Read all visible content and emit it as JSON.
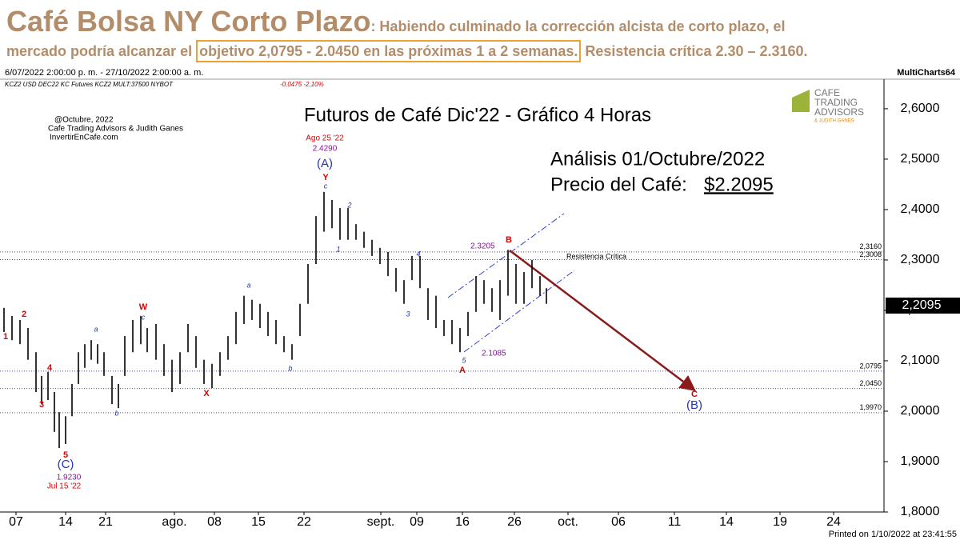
{
  "header": {
    "title": "Café Bolsa NY Corto Plazo",
    "subtitle_1": ": Habiendo culminado la corrección alcista de corto plazo, el",
    "subtitle_2a": "mercado podría alcanzar el ",
    "subtitle_2b": "objetivo 2,0795 - 2.0450 en las próximas 1 a 2 semanas.",
    "subtitle_2c": " Resistencia crítica 2.30 – 2.3160."
  },
  "info": {
    "range": "6/07/2022 2:00:00 p. m. - 27/10/2022 2:00:00 a. m.",
    "app": "MultiCharts64",
    "symbol": "KCZ2  USD DEC22 KC Futures KCZ2 MULT:37500  NYBOT",
    "change": "-0,0475  -2,10%",
    "printed": "Printed on 1/10/2022 at 23:41:55"
  },
  "chart_data": {
    "type": "range-bar",
    "title": "Futuros de Café Dic'22 - Gráfico 4 Horas",
    "color": "#000000",
    "x": [
      0.5,
      1.5,
      2.5,
      3.5,
      4.5,
      5.2,
      6,
      6.8,
      7.4,
      8.2,
      9,
      9.8,
      10.6,
      11.4,
      12.2,
      13,
      14,
      14.8,
      15.6,
      16.6,
      17.6,
      18.4,
      19.5,
      20.5,
      21.5,
      22.5,
      23.5,
      24.5,
      25.5,
      26.5,
      27.5,
      28.5,
      29.5,
      30.5,
      31.5,
      32.5,
      33.5,
      34.5,
      35.5,
      36.5,
      37.5,
      38.5,
      39.5,
      40.5,
      41.5,
      42.5,
      43.5,
      44.5,
      45.5,
      46.5,
      47.5,
      48.5,
      49.5,
      50.5,
      51.5,
      52.5,
      53.5,
      54.5,
      55.5,
      56.5,
      57.5,
      58.5,
      59.5,
      60.5,
      61.5,
      62.5,
      63.5,
      64.5,
      65.5,
      66.5,
      67.5,
      68.3
    ],
    "high": [
      2.205,
      2.189,
      2.181,
      2.165,
      2.117,
      2.07,
      2.078,
      2.038,
      1.998,
      1.99,
      2.054,
      2.117,
      2.133,
      2.141,
      2.133,
      2.117,
      2.07,
      2.054,
      2.149,
      2.181,
      2.189,
      2.165,
      2.173,
      2.133,
      2.102,
      2.117,
      2.173,
      2.149,
      2.102,
      2.094,
      2.117,
      2.149,
      2.197,
      2.229,
      2.221,
      2.213,
      2.197,
      2.181,
      2.149,
      2.133,
      2.213,
      2.292,
      2.387,
      2.435,
      2.419,
      2.403,
      2.403,
      2.371,
      2.356,
      2.34,
      2.324,
      2.316,
      2.284,
      2.26,
      2.308,
      2.308,
      2.244,
      2.229,
      2.181,
      2.181,
      2.165,
      2.197,
      2.268,
      2.26,
      2.244,
      2.26,
      2.32,
      2.292,
      2.276,
      2.3,
      2.268,
      2.244
    ],
    "low": [
      2.157,
      2.141,
      2.133,
      2.102,
      2.038,
      2.014,
      2.022,
      1.959,
      1.927,
      1.935,
      1.99,
      2.054,
      2.086,
      2.102,
      2.094,
      2.07,
      2.014,
      2.006,
      2.07,
      2.117,
      2.133,
      2.117,
      2.102,
      2.07,
      2.038,
      2.054,
      2.117,
      2.086,
      2.054,
      2.046,
      2.07,
      2.102,
      2.133,
      2.173,
      2.181,
      2.165,
      2.149,
      2.133,
      2.117,
      2.102,
      2.149,
      2.213,
      2.292,
      2.356,
      2.363,
      2.34,
      2.34,
      2.34,
      2.324,
      2.308,
      2.292,
      2.268,
      2.237,
      2.213,
      2.26,
      2.244,
      2.181,
      2.165,
      2.149,
      2.133,
      2.117,
      2.149,
      2.197,
      2.213,
      2.197,
      2.181,
      2.229,
      2.213,
      2.213,
      2.244,
      2.229,
      2.213
    ],
    "xlim": [
      0,
      110.5
    ],
    "xticks": [
      {
        "value": 2,
        "label": "07"
      },
      {
        "value": 8.2,
        "label": "14"
      },
      {
        "value": 13.2,
        "label": "21"
      },
      {
        "value": 21.8,
        "label": "ago."
      },
      {
        "value": 26.8,
        "label": "08"
      },
      {
        "value": 32.3,
        "label": "15"
      },
      {
        "value": 38,
        "label": "22"
      },
      {
        "value": 47.6,
        "label": "sept."
      },
      {
        "value": 52.1,
        "label": "09"
      },
      {
        "value": 57.8,
        "label": "16"
      },
      {
        "value": 64.3,
        "label": "26"
      },
      {
        "value": 71,
        "label": "oct."
      },
      {
        "value": 77.3,
        "label": "06"
      },
      {
        "value": 84.3,
        "label": "11"
      },
      {
        "value": 90.8,
        "label": "14"
      },
      {
        "value": 97.5,
        "label": "19"
      },
      {
        "value": 104.2,
        "label": "24"
      }
    ],
    "ylim": [
      1.8,
      2.657
    ],
    "yticks": [
      {
        "value": 1.8,
        "label": "1,8000"
      },
      {
        "value": 1.9,
        "label": "1,9000"
      },
      {
        "value": 2.0,
        "label": "2,0000"
      },
      {
        "value": 2.1,
        "label": "2,1000"
      },
      {
        "value": 2.2,
        "label": "2,2000"
      },
      {
        "value": 2.3,
        "label": "2,3000"
      },
      {
        "value": 2.4,
        "label": "2,4000"
      },
      {
        "value": 2.5,
        "label": "2,5000"
      },
      {
        "value": 2.6,
        "label": "2,6000"
      }
    ],
    "levels": [
      {
        "value": 2.316,
        "label": "2,3160"
      },
      {
        "value": 2.3008,
        "label": "2,3008"
      },
      {
        "value": 2.0795,
        "label": "2,0795"
      },
      {
        "value": 2.045,
        "label": "2,0450"
      },
      {
        "value": 1.997,
        "label": "1,9970"
      }
    ],
    "last": {
      "value": 2.2095,
      "label": "2,2095"
    },
    "annotations": [
      "@Octubre, 2022",
      "Cafe Trading Advisors & Judith Ganes",
      "InvertirEnCafe.com",
      "Análisis 01/Octubre/2022",
      "Precio del Café: ",
      "$2.2095",
      "Ago 25 '22",
      "2.4290",
      "(A)",
      "Y",
      "c",
      "2",
      "1",
      "W",
      "c",
      "a",
      "b",
      "X",
      "a",
      "b",
      "2",
      "1",
      "4",
      "3",
      "5",
      "(C)",
      "1.9230",
      "Jul 15 '22",
      "4",
      "3",
      "5",
      "2.1085",
      "A",
      "2.3205",
      "B",
      "C",
      "(B)",
      "Resistencia Crítica",
      "CAFE",
      "TRADING",
      "ADVISORS",
      "& JUDITH GANES"
    ]
  }
}
